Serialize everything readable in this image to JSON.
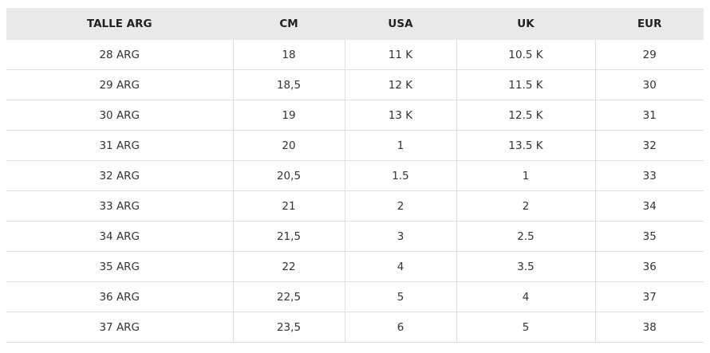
{
  "table": {
    "header": [
      "TALLE ARG",
      "CM",
      "USA",
      "UK",
      "EUR"
    ],
    "rows": [
      [
        "28 ARG",
        "18",
        "11 K",
        "10.5 K",
        "29"
      ],
      [
        "29 ARG",
        "18,5",
        "12 K",
        "11.5 K",
        "30"
      ],
      [
        "30 ARG",
        "19",
        "13 K",
        "12.5 K",
        "31"
      ],
      [
        "31 ARG",
        "20",
        "1",
        "13.5 K",
        "32"
      ],
      [
        "32 ARG",
        "20,5",
        "1.5",
        "1",
        "33"
      ],
      [
        "33 ARG",
        "21",
        "2",
        "2",
        "34"
      ],
      [
        "34 ARG",
        "21,5",
        "3",
        "2.5",
        "35"
      ],
      [
        "35 ARG",
        "22",
        "4",
        "3.5",
        "36"
      ],
      [
        "36 ARG",
        "22,5",
        "5",
        "4",
        "37"
      ],
      [
        "37 ARG",
        "23,5",
        "6",
        "5",
        "38"
      ]
    ]
  }
}
